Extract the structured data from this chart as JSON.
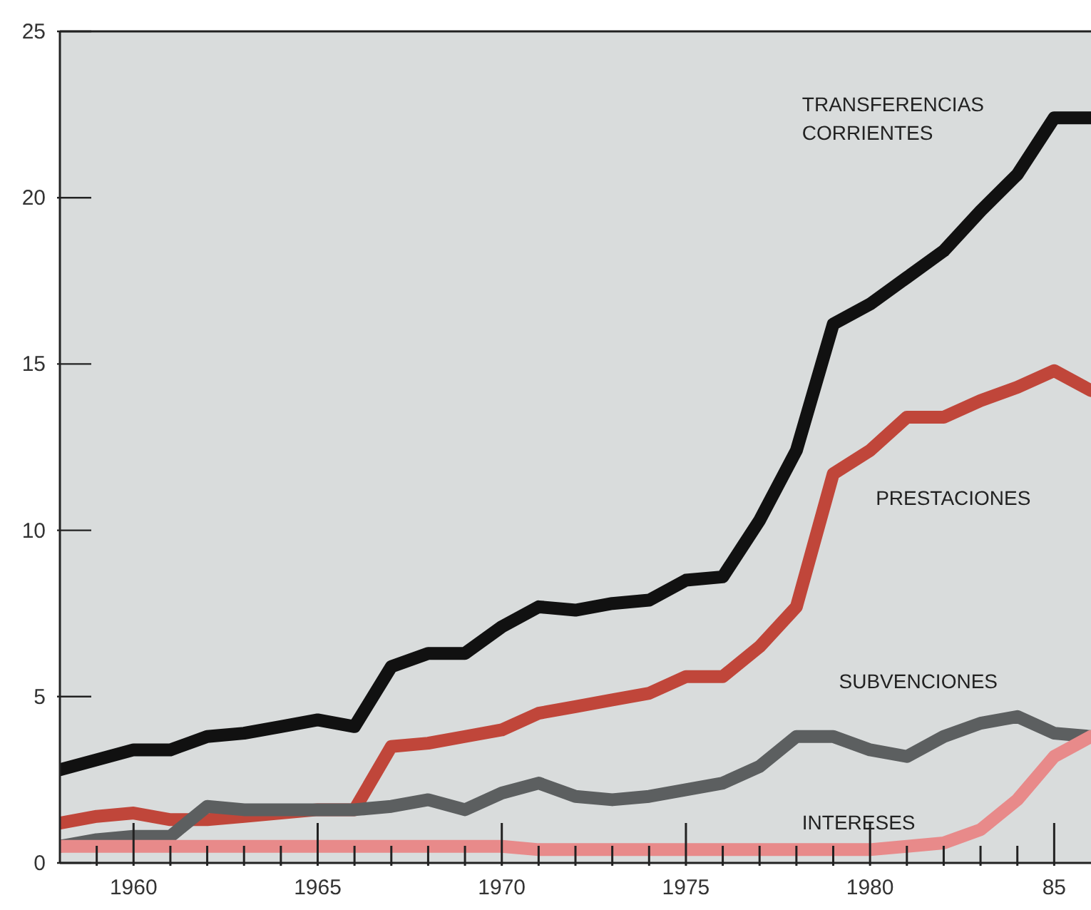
{
  "chart_data": {
    "type": "line",
    "x": [
      1958,
      1959,
      1960,
      1961,
      1962,
      1963,
      1964,
      1965,
      1966,
      1967,
      1968,
      1969,
      1970,
      1971,
      1972,
      1973,
      1974,
      1975,
      1976,
      1977,
      1978,
      1979,
      1980,
      1981,
      1982,
      1983,
      1984,
      1985,
      1986
    ],
    "series": [
      {
        "name": "TRANSFERENCIAS CORRIENTES",
        "color": "#111111",
        "values": [
          2.8,
          3.1,
          3.4,
          3.4,
          3.8,
          3.9,
          4.1,
          4.3,
          4.1,
          5.9,
          6.3,
          6.3,
          7.1,
          7.7,
          7.6,
          7.8,
          7.9,
          8.5,
          8.6,
          10.3,
          12.4,
          16.2,
          16.8,
          17.6,
          18.4,
          19.6,
          20.7,
          22.4,
          22.4
        ]
      },
      {
        "name": "PRESTACIONES",
        "color": "#c0463a",
        "values": [
          1.2,
          1.4,
          1.5,
          1.3,
          1.3,
          1.4,
          1.5,
          1.6,
          1.6,
          3.5,
          3.6,
          3.8,
          4.0,
          4.5,
          4.7,
          4.9,
          5.1,
          5.6,
          5.6,
          6.5,
          7.7,
          11.7,
          12.4,
          13.4,
          13.4,
          13.9,
          14.3,
          14.8,
          14.2
        ]
      },
      {
        "name": "SUBVENCIONES",
        "color": "#5c5f60",
        "values": [
          0.5,
          0.7,
          0.8,
          0.8,
          1.7,
          1.6,
          1.6,
          1.6,
          1.6,
          1.7,
          1.9,
          1.6,
          2.1,
          2.4,
          2.0,
          1.9,
          2.0,
          2.2,
          2.4,
          2.9,
          3.8,
          3.8,
          3.4,
          3.2,
          3.8,
          4.2,
          4.4,
          3.9,
          3.8
        ]
      },
      {
        "name": "INTERESES",
        "color": "#e88a8a",
        "values": [
          0.5,
          0.5,
          0.5,
          0.5,
          0.5,
          0.5,
          0.5,
          0.5,
          0.5,
          0.5,
          0.5,
          0.5,
          0.5,
          0.4,
          0.4,
          0.4,
          0.4,
          0.4,
          0.4,
          0.4,
          0.4,
          0.4,
          0.4,
          0.5,
          0.6,
          1.0,
          1.9,
          3.2,
          3.8
        ]
      }
    ],
    "xlim": [
      1958,
      1986
    ],
    "xticks": [
      {
        "value": 1959,
        "label": null
      },
      1960,
      {
        "value": 1961,
        "label": null
      },
      {
        "value": 1962,
        "label": null
      },
      {
        "value": 1963,
        "label": null
      },
      {
        "value": 1964,
        "label": null
      },
      1965,
      {
        "value": 1966,
        "label": null
      },
      {
        "value": 1967,
        "label": null
      },
      {
        "value": 1968,
        "label": null
      },
      {
        "value": 1969,
        "label": null
      },
      1970,
      {
        "value": 1971,
        "label": null
      },
      {
        "value": 1972,
        "label": null
      },
      {
        "value": 1973,
        "label": null
      },
      {
        "value": 1974,
        "label": null
      },
      1975,
      {
        "value": 1976,
        "label": null
      },
      {
        "value": 1977,
        "label": null
      },
      {
        "value": 1978,
        "label": null
      },
      {
        "value": 1979,
        "label": null
      },
      1980,
      {
        "value": 1981,
        "label": null
      },
      {
        "value": 1982,
        "label": null
      },
      {
        "value": 1983,
        "label": null
      },
      {
        "value": 1984,
        "label": null
      },
      {
        "value": 1985,
        "label": "85"
      }
    ],
    "ylim": [
      0,
      25
    ],
    "yticks": [
      0,
      5,
      10,
      15,
      20,
      25
    ],
    "grid": false,
    "legend": false,
    "marker": "none",
    "line_style": "solid"
  }
}
